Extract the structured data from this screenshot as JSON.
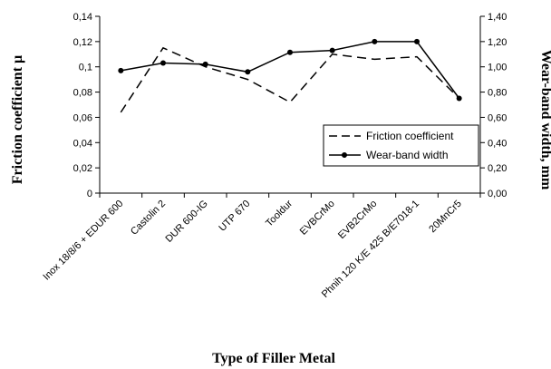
{
  "chart_data": {
    "type": "line",
    "xlabel": "Type of Filler Metal",
    "ylabel_left": "Friction coefficient  µ",
    "ylabel_right": "Wear-band width, mm",
    "categories": [
      "Inox 18/8/6 + EDUR 600",
      "Castolin 2",
      "DUR 600-IG",
      "UTP 670",
      "Tooldur",
      "EVBCrMo",
      "EVB2CrMo",
      "Phnih 120 K/E 425 B/E7018-1",
      "20MnCr5"
    ],
    "left_axis": {
      "ylim": [
        0,
        0.14
      ],
      "ticks": [
        0,
        0.02,
        0.04,
        0.06,
        0.08,
        0.1,
        0.12,
        0.14
      ],
      "tick_labels": [
        "0",
        "0,02",
        "0,04",
        "0,06",
        "0,08",
        "0,1",
        "0,12",
        "0,14"
      ]
    },
    "right_axis": {
      "ylim": [
        0,
        1.4
      ],
      "ticks": [
        0,
        0.2,
        0.4,
        0.6,
        0.8,
        1.0,
        1.2,
        1.4
      ],
      "tick_labels": [
        "0,00",
        "0,20",
        "0,40",
        "0,60",
        "0,80",
        "1,00",
        "1,20",
        "1,40"
      ]
    },
    "series": [
      {
        "name": "Friction coefficient",
        "axis": "left",
        "style": "dashed",
        "values": [
          0.064,
          0.115,
          0.1,
          0.09,
          0.072,
          0.11,
          0.106,
          0.108,
          0.075
        ]
      },
      {
        "name": "Wear-band width",
        "axis": "right",
        "style": "solid-dot",
        "values": [
          0.97,
          1.03,
          1.02,
          0.96,
          1.115,
          1.13,
          1.2,
          1.2,
          0.75
        ]
      }
    ],
    "grid": false,
    "legend_position": "lower-right",
    "colors": {
      "line": "#000000",
      "background": "#ffffff"
    }
  }
}
